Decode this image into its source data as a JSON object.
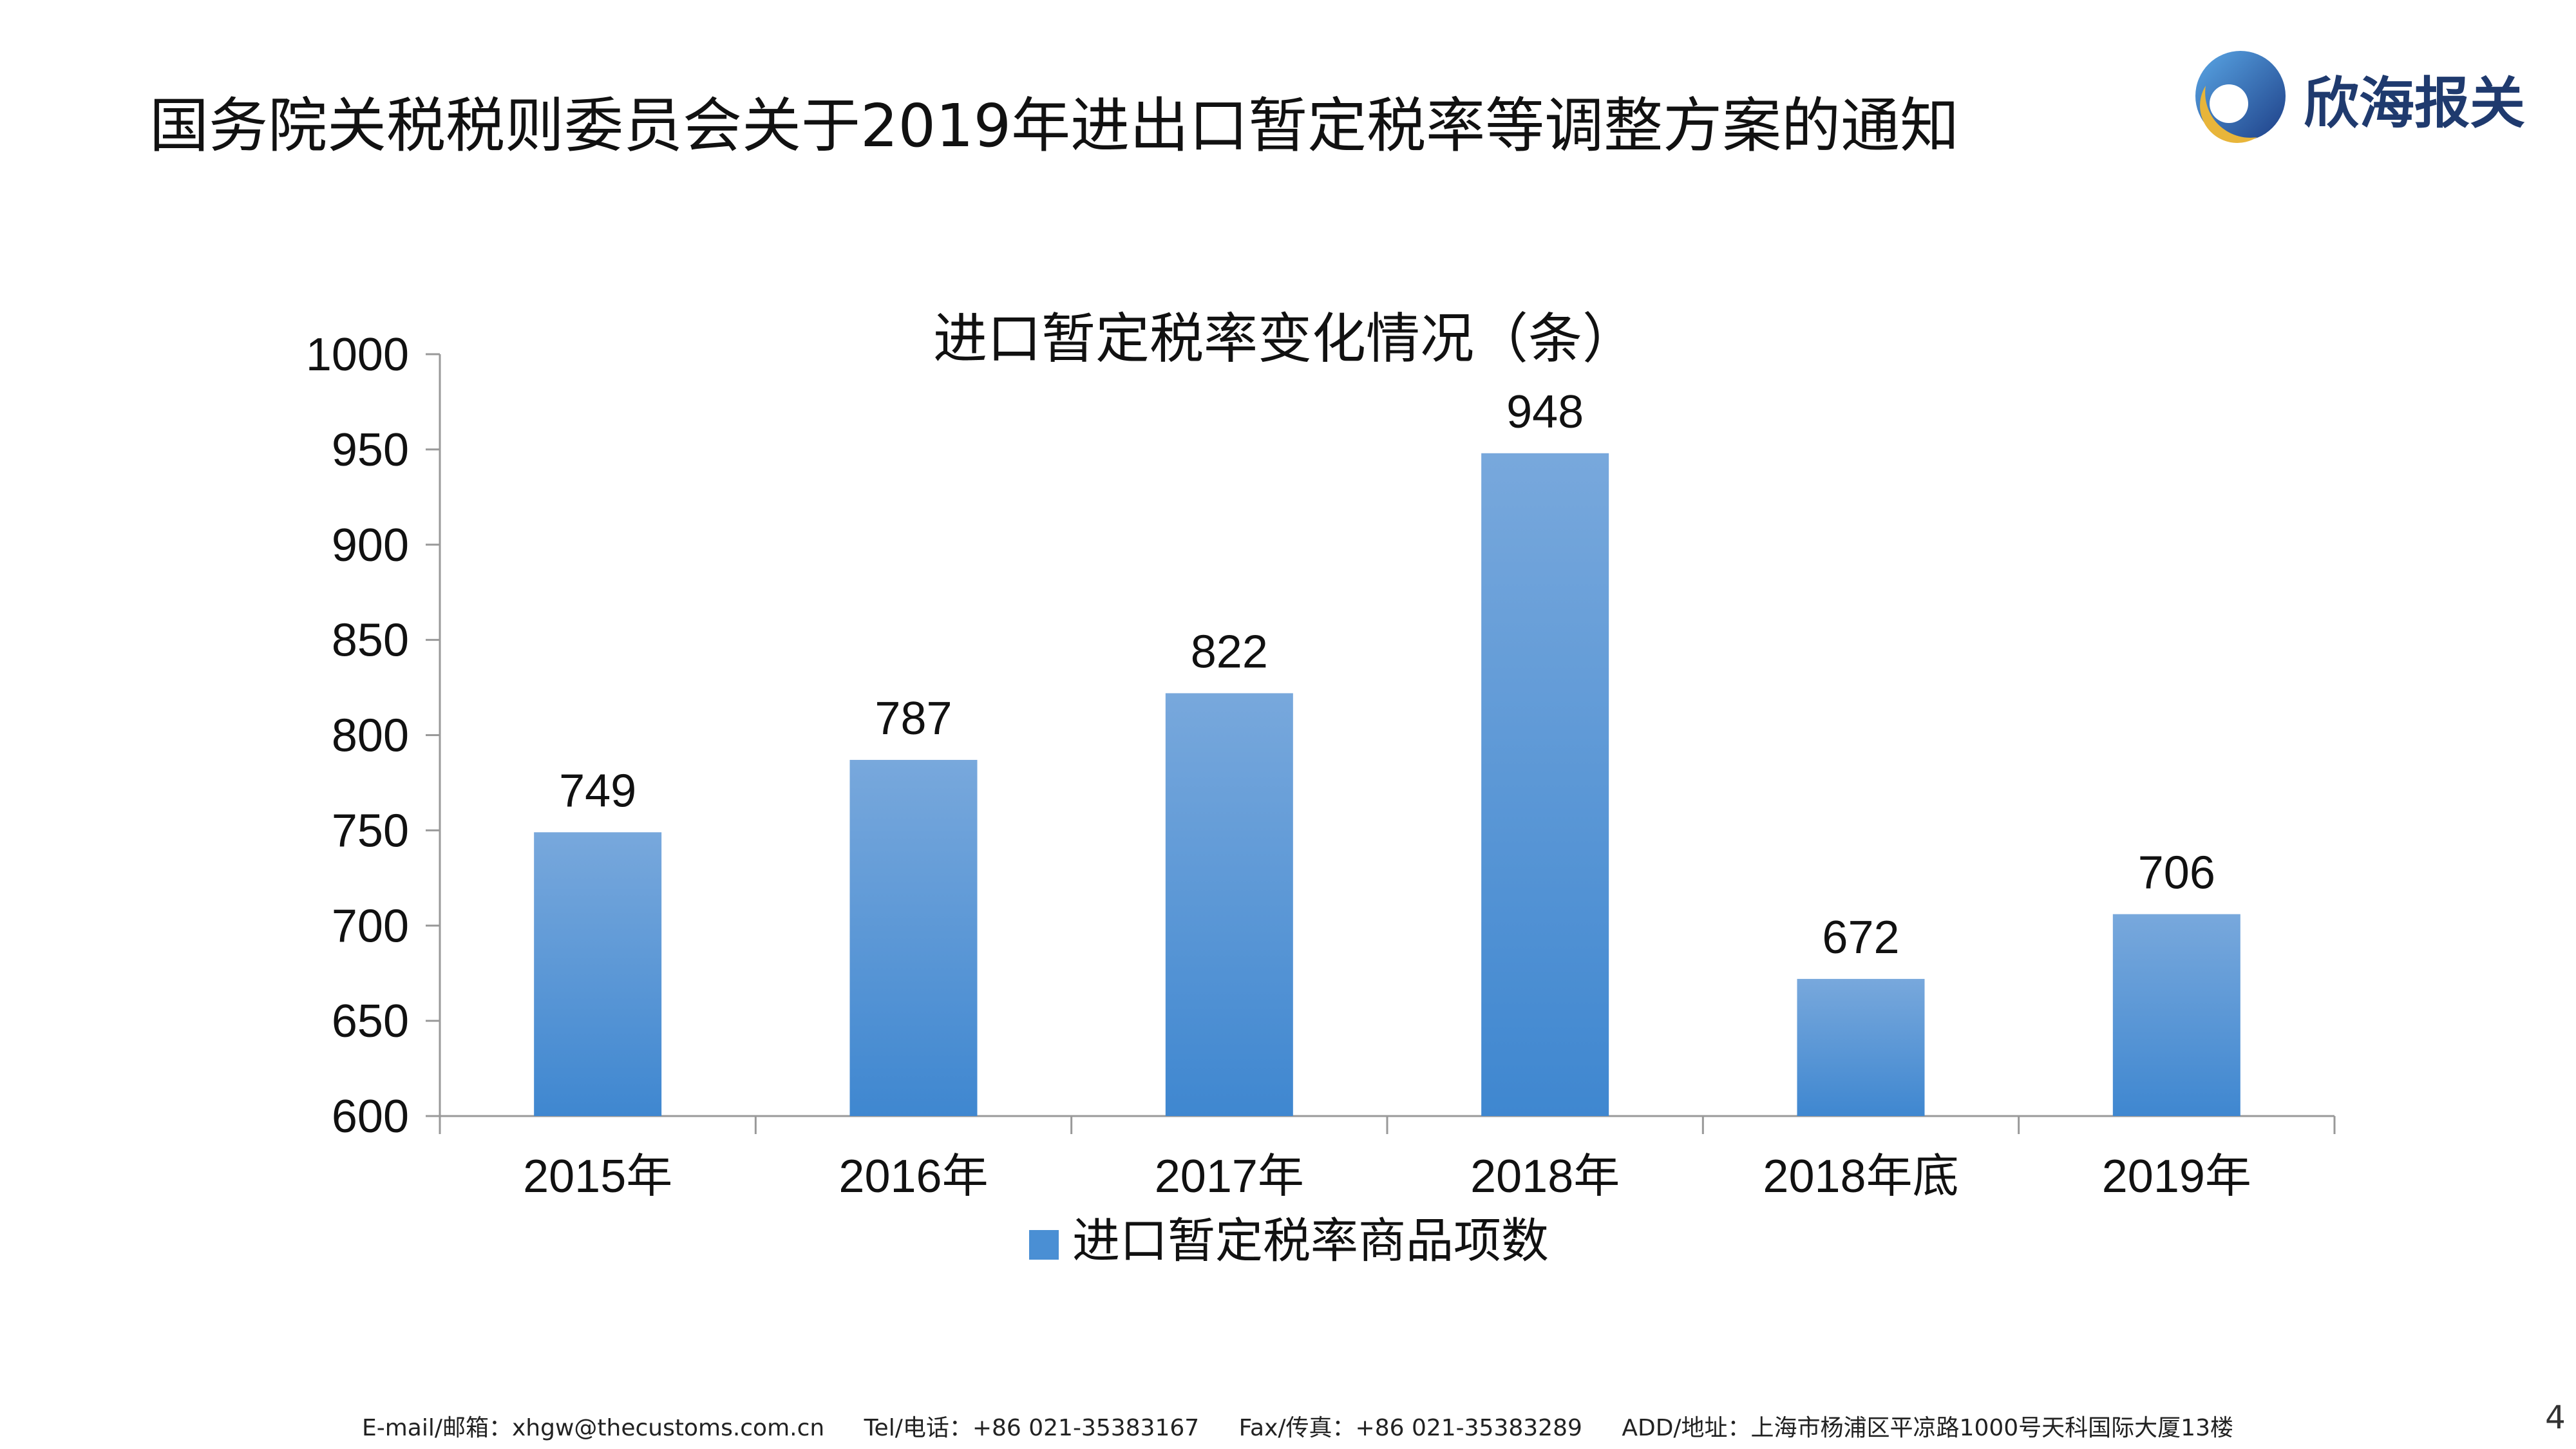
{
  "slide": {
    "title": "国务院关税税则委员会关于2019年进出口暂定税率等调整方案的通知",
    "logo_text": "欣海报关",
    "page_number": "4"
  },
  "footer": {
    "email": "E-mail/邮箱：xhgw@thecustoms.com.cn",
    "tel": "Tel/电话：+86 021-35383167",
    "fax": "Fax/传真：+86 021-35383289",
    "address": "ADD/地址：上海市杨浦区平凉路1000号天科国际大厦13楼"
  },
  "chart_data": {
    "type": "bar",
    "title": "进口暂定税率变化情况（条）",
    "xlabel": "",
    "ylabel": "",
    "categories": [
      "2015年",
      "2016年",
      "2017年",
      "2018年",
      "2018年底",
      "2019年"
    ],
    "series": [
      {
        "name": "进口暂定税率商品项数",
        "values": [
          749,
          787,
          822,
          948,
          672,
          706
        ]
      }
    ],
    "ylim": [
      600,
      1000
    ],
    "yticks": [
      600,
      650,
      700,
      750,
      800,
      850,
      900,
      950,
      1000
    ],
    "data_labels": true,
    "grid": false,
    "legend_position": "bottom"
  },
  "colors": {
    "bar_top": "#78a8dc",
    "bar_bottom": "#3f87d0",
    "axis": "#999999",
    "logo_blue": "#1f3a6e",
    "logo_gold": "#e8b53a"
  }
}
